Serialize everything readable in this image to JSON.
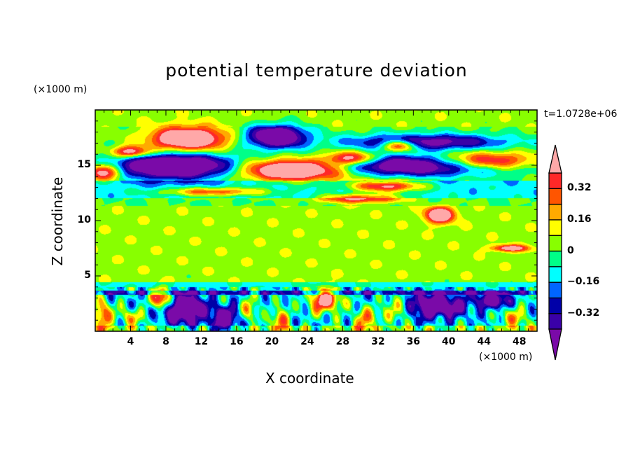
{
  "chart_data": {
    "type": "heatmap",
    "title": "potential temperature deviation",
    "xlabel": "X coordinate",
    "ylabel": "Z coordinate",
    "x_unit": "(×1000 m)",
    "y_unit": "(×1000 m)",
    "time_label": "t=1.0728e+06",
    "xlim": [
      0,
      50
    ],
    "ylim": [
      0,
      20
    ],
    "x_ticks": [
      "4",
      "8",
      "12",
      "16",
      "20",
      "24",
      "28",
      "32",
      "36",
      "40",
      "44",
      "48"
    ],
    "x_tick_values": [
      4,
      8,
      12,
      16,
      20,
      24,
      28,
      32,
      36,
      40,
      44,
      48
    ],
    "y_ticks": [
      "5",
      "10",
      "15"
    ],
    "y_tick_values": [
      5,
      10,
      15
    ],
    "colorbar": {
      "levels": [
        -0.4,
        -0.32,
        -0.24,
        -0.16,
        -0.08,
        0,
        0.08,
        0.16,
        0.24,
        0.32,
        0.4
      ],
      "labels": [
        "0.32",
        "0.16",
        "0",
        "−0.16",
        "−0.32"
      ],
      "label_values": [
        0.32,
        0.16,
        0,
        -0.16,
        -0.32
      ],
      "colors": [
        "#7a0aa8",
        "#3a00a8",
        "#0000a8",
        "#0066ff",
        "#00ffff",
        "#00ff88",
        "#88ff00",
        "#ffff00",
        "#ffaa00",
        "#ff5500",
        "#ff2828",
        "#ffa8a8"
      ]
    },
    "background_profile": [
      {
        "z": [
          0,
          0.5
        ],
        "value": 0.02
      },
      {
        "z": [
          0.5,
          3.3
        ],
        "value": -0.12
      },
      {
        "z": [
          3.3,
          3.7
        ],
        "value": -0.3
      },
      {
        "z": [
          3.7,
          4.4
        ],
        "value": -0.1
      },
      {
        "z": [
          4.4,
          11.3
        ],
        "value": 0.05
      },
      {
        "z": [
          11.3,
          12
        ],
        "value": 0.0
      },
      {
        "z": [
          12,
          13.6
        ],
        "value": -0.12
      },
      {
        "z": [
          13.6,
          18.5
        ],
        "value": 0.02
      },
      {
        "z": [
          18.5,
          20
        ],
        "value": 0.05
      }
    ],
    "features": [
      {
        "x": 10.5,
        "z": 17.4,
        "rx": 4.0,
        "rz": 1.0,
        "v": 0.75
      },
      {
        "x": 4.0,
        "z": 16.2,
        "rx": 2.0,
        "rz": 0.5,
        "v": 0.55
      },
      {
        "x": 20.5,
        "z": 17.6,
        "rx": 3.2,
        "rz": 1.0,
        "v": -0.75
      },
      {
        "x": 9.0,
        "z": 14.9,
        "rx": 7.0,
        "rz": 1.1,
        "v": -0.8
      },
      {
        "x": 1.0,
        "z": 14.4,
        "rx": 2.0,
        "rz": 0.7,
        "v": 0.6
      },
      {
        "x": 22.5,
        "z": 14.6,
        "rx": 6.0,
        "rz": 0.9,
        "v": 0.8
      },
      {
        "x": 29.0,
        "z": 15.6,
        "rx": 3.0,
        "rz": 0.6,
        "v": 0.55
      },
      {
        "x": 37.5,
        "z": 15.0,
        "rx": 11.0,
        "rz": 0.9,
        "v": -0.75
      },
      {
        "x": 37.5,
        "z": 17.1,
        "rx": 9.0,
        "rz": 0.7,
        "v": -0.5
      },
      {
        "x": 34.5,
        "z": 16.8,
        "rx": 1.8,
        "rz": 0.5,
        "v": 0.6
      },
      {
        "x": 44.0,
        "z": 15.3,
        "rx": 6.0,
        "rz": 0.8,
        "v": 0.75
      },
      {
        "x": 33.0,
        "z": 13.1,
        "rx": 4.0,
        "rz": 0.5,
        "v": 0.55
      },
      {
        "x": 13.5,
        "z": 12.6,
        "rx": 6.0,
        "rz": 0.4,
        "v": 0.4
      },
      {
        "x": 30.0,
        "z": 12.0,
        "rx": 4.5,
        "rz": 0.4,
        "v": 0.45
      },
      {
        "x": 39.0,
        "z": 10.5,
        "rx": 1.6,
        "rz": 0.7,
        "v": 0.65
      },
      {
        "x": 47.0,
        "z": 7.5,
        "rx": 2.0,
        "rz": 0.3,
        "v": 0.5
      },
      {
        "x": 26.0,
        "z": 2.8,
        "rx": 1.6,
        "rz": 1.0,
        "v": 0.7
      },
      {
        "x": 7.5,
        "z": 3.0,
        "rx": 1.1,
        "rz": 0.9,
        "v": 0.65
      },
      {
        "x": 10.0,
        "z": 2.0,
        "rx": 2.2,
        "rz": 1.3,
        "v": -0.6
      },
      {
        "x": 38.5,
        "z": 2.3,
        "rx": 3.0,
        "rz": 1.0,
        "v": -0.6
      },
      {
        "x": 14.5,
        "z": 1.0,
        "rx": 1.5,
        "rz": 1.2,
        "v": -0.5
      },
      {
        "x": 45.0,
        "z": 2.8,
        "rx": 2.0,
        "rz": 0.7,
        "v": -0.45
      },
      {
        "x": 0.8,
        "z": 1.5,
        "rx": 1.0,
        "rz": 1.2,
        "v": 0.5
      },
      {
        "x": 21.0,
        "z": 1.0,
        "rx": 1.0,
        "rz": 1.0,
        "v": 0.4
      },
      {
        "x": 30.5,
        "z": 1.0,
        "rx": 1.2,
        "rz": 1.0,
        "v": 0.4
      },
      {
        "x": 47.5,
        "z": 1.2,
        "rx": 1.5,
        "rz": 1.0,
        "v": 0.3
      },
      {
        "x": 4.0,
        "z": 1.2,
        "rx": 1.2,
        "rz": 0.8,
        "v": 0.3
      },
      {
        "x": 17.5,
        "z": 2.0,
        "rx": 1.0,
        "rz": 1.2,
        "v": 0.25
      },
      {
        "x": 34.0,
        "z": 2.0,
        "rx": 1.5,
        "rz": 1.0,
        "v": 0.3
      }
    ]
  }
}
